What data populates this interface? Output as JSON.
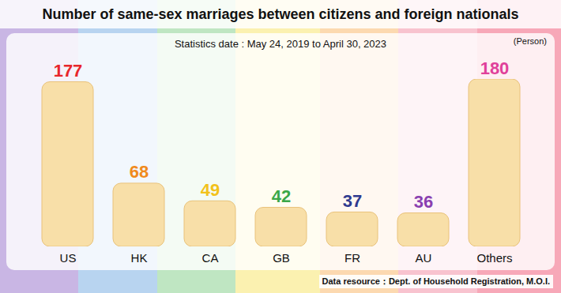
{
  "chart_data": {
    "type": "bar",
    "title": "Number of same-sex marriages between citizens and foreign nationals",
    "subtitle": "Statistics date : May 24, 2019 to April 30, 2023",
    "ylabel": "(Person)",
    "caption": "Data resource：Dept. of Household Registration, M.O.I.",
    "categories": [
      "US",
      "HK",
      "CA",
      "GB",
      "FR",
      "AU",
      "Others"
    ],
    "values": [
      177,
      68,
      49,
      42,
      37,
      36,
      180
    ],
    "color": "#f8dfa8",
    "colors": [
      "#e8262b",
      "#f08a1c",
      "#f2c21b",
      "#3aa848",
      "#2e3a8f",
      "#8a3fb0",
      "#e0409a"
    ],
    "ylim": [
      0,
      180
    ],
    "data_labels": true,
    "tick_labels": "x",
    "grid": false
  }
}
